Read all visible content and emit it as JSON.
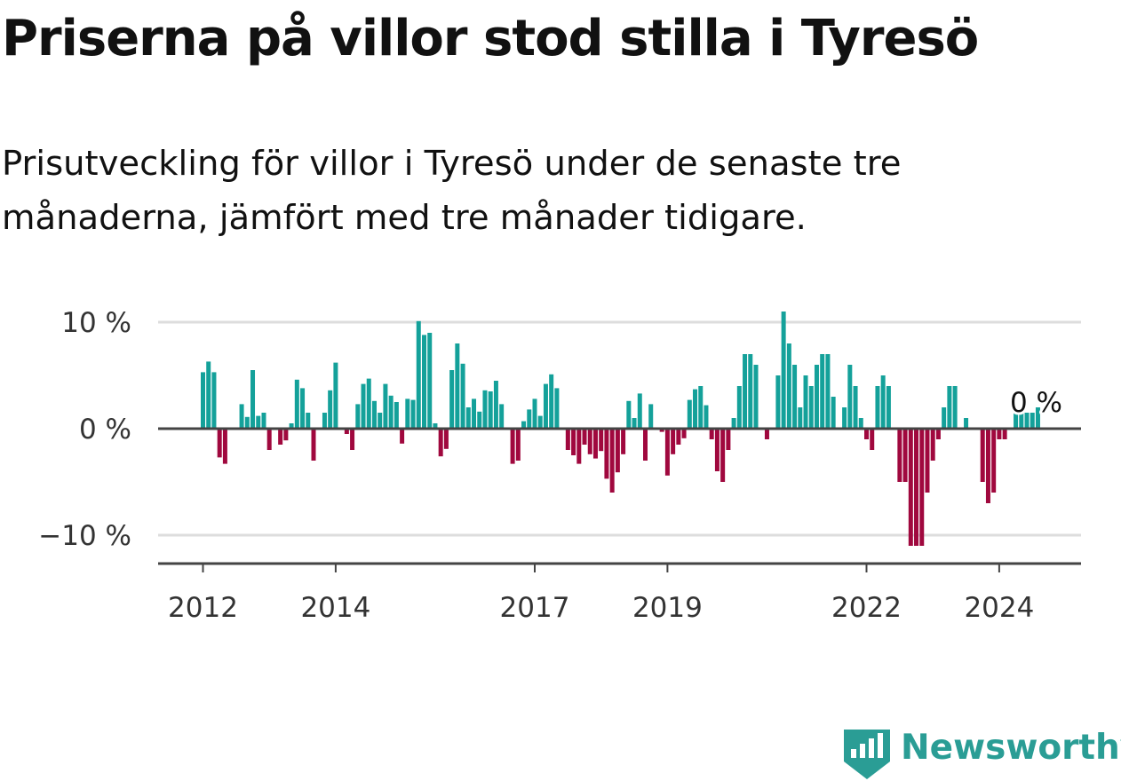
{
  "title": "Priserna på villor stod stilla i Tyresö",
  "subtitle": "Prisutveckling för villor i Tyresö under de senaste tre månaderna, jämfört med tre månader tidigare.",
  "colors": {
    "positive": "#14a19a",
    "negative": "#a0083e",
    "grid": "#dddddd",
    "axis": "#444444",
    "text": "#333333",
    "brand": "#2a9d95"
  },
  "brand": {
    "name": "Newsworthy",
    "icon": "newsworthy-logo-icon"
  },
  "chart_data": {
    "type": "bar",
    "title": "Priserna på villor stod stilla i Tyresö",
    "xlabel": "",
    "ylabel": "",
    "ylim": [
      -12.5,
      10
    ],
    "yticks": [
      {
        "value": 10,
        "label": "10 %"
      },
      {
        "value": 0,
        "label": "0 %"
      },
      {
        "value": -10,
        "label": "−10 %"
      }
    ],
    "xticks": [
      {
        "year": 2012,
        "label": "2012"
      },
      {
        "year": 2014,
        "label": "2014"
      },
      {
        "year": 2017,
        "label": "2017"
      },
      {
        "year": 2019,
        "label": "2019"
      },
      {
        "year": 2022,
        "label": "2022"
      },
      {
        "year": 2024,
        "label": "2024"
      }
    ],
    "start_year": 2012,
    "start_month": 1,
    "values": [
      5.3,
      6.3,
      5.3,
      -2.7,
      -3.3,
      0,
      0.1,
      2.3,
      1.1,
      5.5,
      1.2,
      1.5,
      -2,
      0,
      -1.5,
      -1.1,
      0.5,
      4.6,
      3.8,
      1.5,
      -3,
      0,
      1.5,
      3.6,
      6.2,
      0,
      -0.5,
      -2,
      2.3,
      4.2,
      4.7,
      2.6,
      1.5,
      4.2,
      3.1,
      2.5,
      -1.4,
      2.8,
      2.7,
      10.1,
      8.8,
      9,
      0.5,
      -2.6,
      -1.9,
      5.5,
      8,
      6.1,
      2,
      2.8,
      1.6,
      3.6,
      3.5,
      4.5,
      2.3,
      0,
      -3.3,
      -3,
      0.7,
      1.8,
      2.8,
      1.2,
      4.2,
      5.1,
      3.8,
      0,
      -2,
      -2.5,
      -3.3,
      -1.5,
      -2.4,
      -2.8,
      -2.1,
      -4.7,
      -6,
      -4.1,
      -2.4,
      2.6,
      1,
      3.3,
      -3,
      2.3,
      0,
      -0.3,
      -4.4,
      -2.4,
      -1.5,
      -0.9,
      2.7,
      3.7,
      4,
      2.2,
      -1,
      -4,
      -5,
      -2,
      1,
      4,
      7,
      7,
      6,
      0,
      -1,
      0,
      5,
      11,
      8,
      6,
      2,
      5,
      4,
      6,
      7,
      7,
      3,
      0,
      2,
      6,
      4,
      1,
      -1,
      -2,
      4,
      5,
      4,
      0,
      -5,
      -5,
      -11,
      -11,
      -11,
      -6,
      -3,
      -1,
      2,
      4,
      4,
      0,
      1,
      0,
      0,
      -5,
      -7,
      -6,
      -1,
      -1,
      0,
      2,
      1.5,
      1.5,
      1.5,
      2
    ],
    "annotation": {
      "label": "0 %",
      "value": 0
    }
  }
}
